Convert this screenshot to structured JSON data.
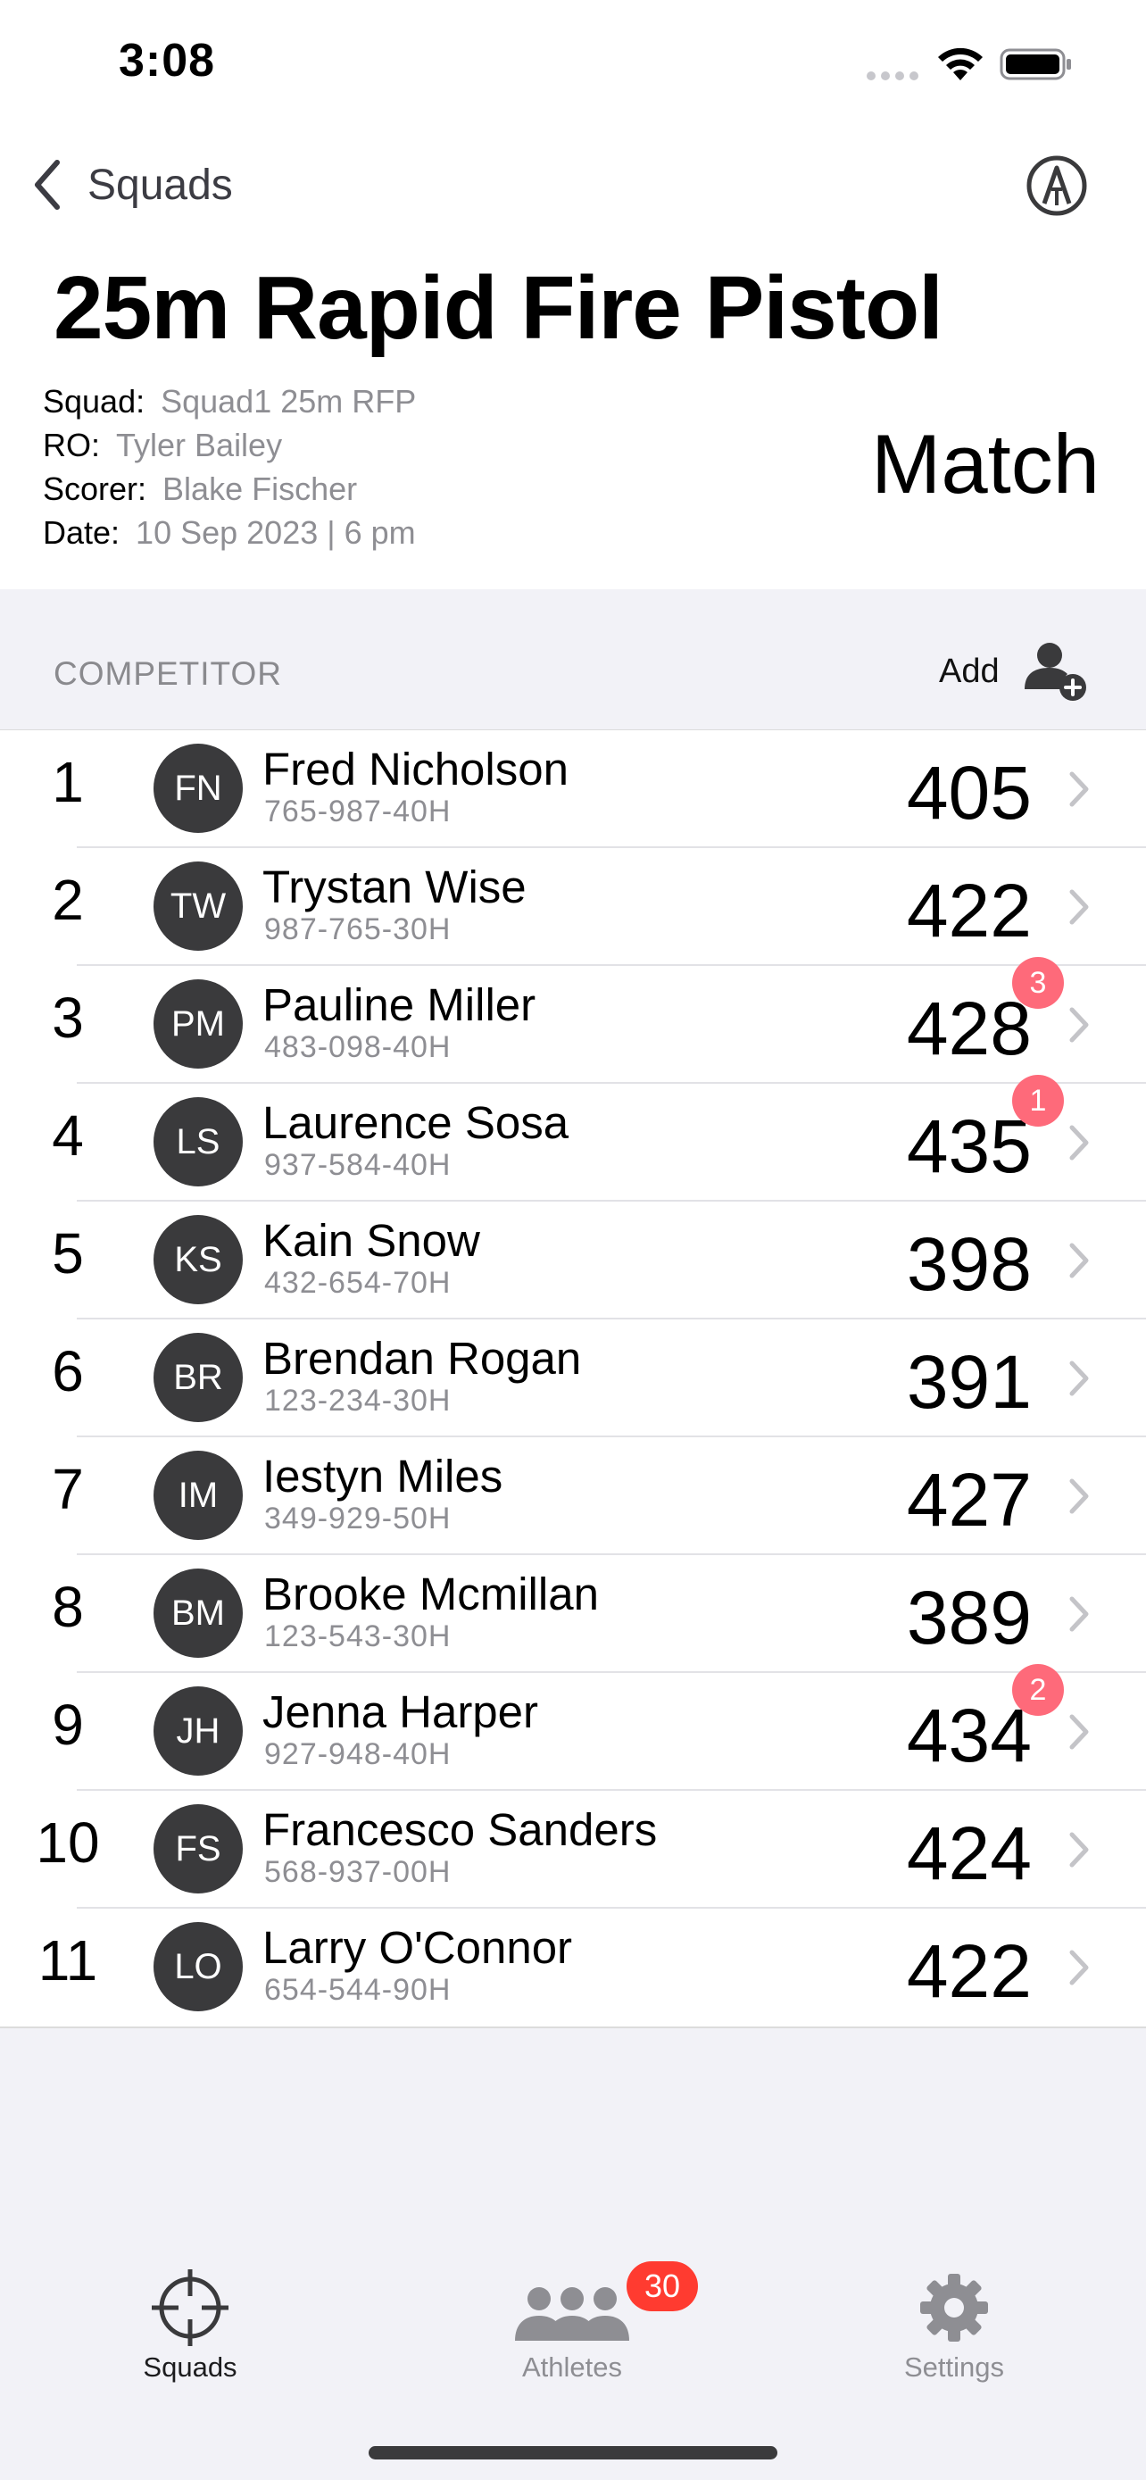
{
  "status_bar": {
    "time": "3:08"
  },
  "nav": {
    "back_label": "Squads",
    "markup_icon": "pencil-tip-circle-icon"
  },
  "header": {
    "title": "25m Rapid Fire Pistol",
    "mode": "Match",
    "meta": [
      {
        "key": "Squad:",
        "value": "Squad1 25m RFP"
      },
      {
        "key": "RO:",
        "value": "Tyler Bailey"
      },
      {
        "key": "Scorer:",
        "value": "Blake Fischer"
      },
      {
        "key": "Date:",
        "value": "10 Sep 2023 | 6 pm"
      }
    ]
  },
  "section": {
    "title": "COMPETITOR",
    "add_label": "Add"
  },
  "competitors": [
    {
      "rank": "1",
      "initials": "FN",
      "name": "Fred Nicholson",
      "id": "765-987-40H",
      "score": "405",
      "badge": ""
    },
    {
      "rank": "2",
      "initials": "TW",
      "name": "Trystan Wise",
      "id": "987-765-30H",
      "score": "422",
      "badge": ""
    },
    {
      "rank": "3",
      "initials": "PM",
      "name": "Pauline Miller",
      "id": "483-098-40H",
      "score": "428",
      "badge": "3"
    },
    {
      "rank": "4",
      "initials": "LS",
      "name": "Laurence Sosa",
      "id": "937-584-40H",
      "score": "435",
      "badge": "1"
    },
    {
      "rank": "5",
      "initials": "KS",
      "name": "Kain Snow",
      "id": "432-654-70H",
      "score": "398",
      "badge": ""
    },
    {
      "rank": "6",
      "initials": "BR",
      "name": "Brendan Rogan",
      "id": "123-234-30H",
      "score": "391",
      "badge": ""
    },
    {
      "rank": "7",
      "initials": "IM",
      "name": "Iestyn Miles",
      "id": "349-929-50H",
      "score": "427",
      "badge": ""
    },
    {
      "rank": "8",
      "initials": "BM",
      "name": "Brooke Mcmillan",
      "id": "123-543-30H",
      "score": "389",
      "badge": ""
    },
    {
      "rank": "9",
      "initials": "JH",
      "name": "Jenna Harper",
      "id": "927-948-40H",
      "score": "434",
      "badge": "2"
    },
    {
      "rank": "10",
      "initials": "FS",
      "name": "Francesco Sanders",
      "id": "568-937-00H",
      "score": "424",
      "badge": ""
    },
    {
      "rank": "11",
      "initials": "LO",
      "name": "Larry O'Connor",
      "id": "654-544-90H",
      "score": "422",
      "badge": ""
    }
  ],
  "tabs": [
    {
      "label": "Squads",
      "icon": "crosshair-icon",
      "active": true
    },
    {
      "label": "Athletes",
      "icon": "people-icon",
      "active": false,
      "badge": "30"
    },
    {
      "label": "Settings",
      "icon": "gear-icon",
      "active": false
    }
  ],
  "colors": {
    "badge": "#fe6a7a",
    "tab_badge": "#ff3b30",
    "avatar": "#3a3a3c",
    "background": "#f2f2f7"
  }
}
